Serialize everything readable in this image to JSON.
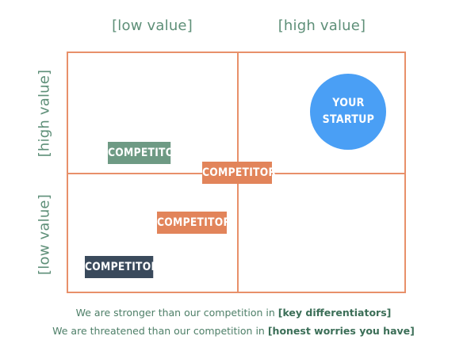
{
  "columns": {
    "left_label": "[low value]",
    "right_label": "[high value]"
  },
  "rows": {
    "top_label": "[high value]",
    "bottom_label": "[low value]"
  },
  "competitors": [
    {
      "label": "COMPETITOR"
    },
    {
      "label": "COMPETITOR"
    },
    {
      "label": "COMPETITOR"
    },
    {
      "label": "COMPETITOR"
    }
  ],
  "startup": {
    "line1": "YOUR",
    "line2": "STARTUP"
  },
  "footer": {
    "line1_prefix": "We are stronger than our competition in ",
    "line1_emphasis": "[key differentiators]",
    "line2_prefix": "We are threatened than our competition in ",
    "line2_emphasis": "[honest worries you have]"
  },
  "colors": {
    "grid": "#e8906a",
    "label_green": "#5e8f78",
    "competitor_green": "#6e9a84",
    "competitor_orange": "#e2845a",
    "competitor_navy": "#3a4a5c",
    "startup_blue": "#4a9ff5"
  }
}
